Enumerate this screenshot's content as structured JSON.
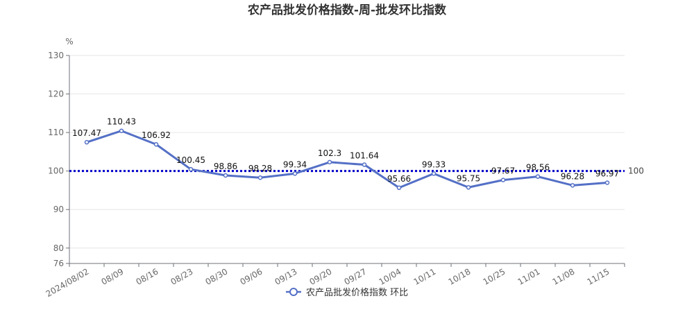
{
  "chart_data": {
    "type": "line",
    "title": "农产品批发价格指数-周-批发环比指数",
    "ylabel": "%",
    "xlabel": "",
    "ylim": [
      76,
      130
    ],
    "yticks": [
      76,
      80,
      90,
      100,
      110,
      120,
      130
    ],
    "x": [
      "2024/08/02",
      "08/09",
      "08/16",
      "08/23",
      "08/30",
      "09/06",
      "09/13",
      "09/20",
      "09/27",
      "10/04",
      "10/11",
      "10/18",
      "10/25",
      "11/01",
      "11/08",
      "11/15"
    ],
    "series": [
      {
        "name": "农产品批发价格指数 环比",
        "values": [
          107.47,
          110.43,
          106.92,
          100.45,
          98.86,
          98.28,
          99.34,
          102.3,
          101.64,
          95.66,
          99.33,
          95.75,
          97.67,
          98.56,
          96.28,
          96.97
        ],
        "color": "#5470c6"
      }
    ],
    "reference_line": {
      "value": 100,
      "label": "100",
      "color": "#0000cc",
      "style": "dotted"
    },
    "grid": true,
    "legend_position": "bottom"
  }
}
